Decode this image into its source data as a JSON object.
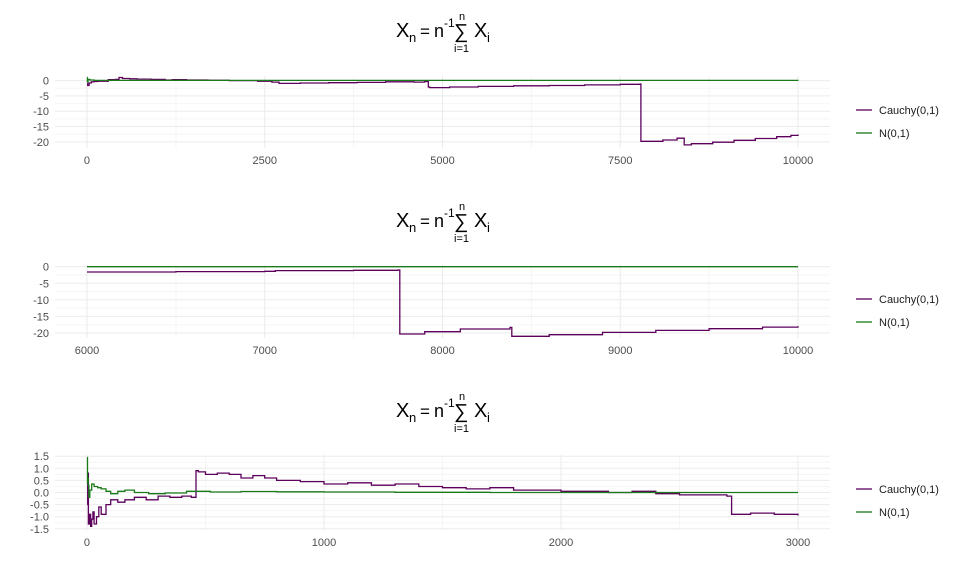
{
  "figure": {
    "title_parts": {
      "x": "X",
      "n_sub": "n",
      "eq": "=",
      "n": "n",
      "exp": "-1",
      "sum": "∑",
      "upper": "n",
      "lower": "i=1",
      "xi": "X",
      "i_sub": "i"
    }
  },
  "colors": {
    "cauchy": "#5c005c",
    "normal": "#1a7a1a",
    "grid_major": "#ebebeb",
    "grid_minor": "#f5f5f5"
  },
  "chart_data": [
    {
      "type": "line",
      "title": "Xn = n^-1 ∑(i=1..n) Xi",
      "xlim": [
        0,
        10000
      ],
      "ylim": [
        -22,
        1.5
      ],
      "x_ticks": [
        0,
        2500,
        5000,
        7500,
        10000
      ],
      "x_tick_labels": [
        "0",
        "2500",
        "5000",
        "7500",
        "10000"
      ],
      "y_ticks": [
        0,
        -5,
        -10,
        -15,
        -20
      ],
      "y_tick_labels": [
        "0",
        "-5",
        "-10",
        "-15",
        "-20"
      ],
      "legend_position": "right",
      "series": [
        {
          "name": "Cauchy(0,1)",
          "color_key": "cauchy",
          "x": [
            1,
            10,
            30,
            60,
            100,
            150,
            200,
            300,
            400,
            450,
            500,
            600,
            700,
            900,
            1100,
            1200,
            1400,
            1700,
            2000,
            2400,
            2600,
            2700,
            3000,
            3400,
            3800,
            4200,
            4600,
            4750,
            4800,
            4820,
            5100,
            5500,
            6000,
            6500,
            7000,
            7500,
            7780,
            7790,
            8100,
            8300,
            8400,
            8500,
            8800,
            9100,
            9400,
            9700,
            9900,
            10000
          ],
          "y": [
            -1,
            -1.6,
            -0.8,
            -0.4,
            -0.3,
            -0.2,
            -0.2,
            0.3,
            0.4,
            1.0,
            0.7,
            0.6,
            0.5,
            0.4,
            0.2,
            0.3,
            0.2,
            0.1,
            0.0,
            -0.2,
            -0.5,
            -0.9,
            -0.8,
            -0.7,
            -0.6,
            -0.4,
            -0.5,
            -0.3,
            -2.1,
            -2.3,
            -2.1,
            -1.9,
            -1.7,
            -1.6,
            -1.4,
            -1.2,
            -1.1,
            -19.8,
            -19.4,
            -18.8,
            -21.0,
            -20.6,
            -20.1,
            -19.5,
            -18.9,
            -18.3,
            -17.9,
            -17.6
          ]
        },
        {
          "name": "N(0,1)",
          "color_key": "normal",
          "x": [
            1,
            5,
            15,
            40,
            100,
            10000
          ],
          "y": [
            1.0,
            -0.5,
            0.4,
            0.2,
            0.05,
            0.0
          ]
        }
      ]
    },
    {
      "type": "line",
      "title": "Xn = n^-1 ∑(i=1..n) Xi",
      "xlim": [
        6000,
        10000
      ],
      "ylim": [
        -21.5,
        0.5
      ],
      "x_ticks": [
        6000,
        7000,
        8000,
        9000,
        10000
      ],
      "x_tick_labels": [
        "6000",
        "7000",
        "8000",
        "9000",
        "10000"
      ],
      "y_ticks": [
        0,
        -5,
        -10,
        -15,
        -20
      ],
      "y_tick_labels": [
        "0",
        "-5",
        "-10",
        "-15",
        "-20"
      ],
      "legend_position": "right",
      "series": [
        {
          "name": "Cauchy(0,1)",
          "color_key": "cauchy",
          "x": [
            6000,
            6500,
            7000,
            7060,
            7500,
            7750,
            7760,
            7900,
            8100,
            8380,
            8390,
            8600,
            8900,
            9200,
            9500,
            9800,
            10000
          ],
          "y": [
            -1.6,
            -1.5,
            -1.4,
            -1.2,
            -1.1,
            -1.0,
            -20.3,
            -19.6,
            -18.8,
            -18.3,
            -21.0,
            -20.5,
            -19.8,
            -19.2,
            -18.7,
            -18.2,
            -17.9
          ]
        },
        {
          "name": "N(0,1)",
          "color_key": "normal",
          "x": [
            6000,
            10000
          ],
          "y": [
            0.0,
            0.0
          ]
        }
      ]
    },
    {
      "type": "line",
      "title": "Xn = n^-1 ∑(i=1..n) Xi",
      "xlim": [
        0,
        3000
      ],
      "ylim": [
        -1.55,
        1.55
      ],
      "x_ticks": [
        0,
        1000,
        2000,
        3000
      ],
      "x_tick_labels": [
        "0",
        "1000",
        "2000",
        "3000"
      ],
      "y_ticks": [
        1.5,
        1.0,
        0.5,
        0.0,
        -0.5,
        -1.0,
        -1.5
      ],
      "y_tick_labels": [
        "1.5",
        "1.0",
        "0.5",
        "0.0",
        "-0.5",
        "-1.0",
        "-1.5"
      ],
      "legend_position": "right",
      "series": [
        {
          "name": "Cauchy(0,1)",
          "color_key": "cauchy",
          "x": [
            1,
            3,
            6,
            10,
            15,
            20,
            25,
            30,
            40,
            50,
            60,
            80,
            100,
            130,
            160,
            200,
            250,
            300,
            350,
            400,
            440,
            460,
            470,
            500,
            550,
            600,
            650,
            700,
            750,
            800,
            900,
            1000,
            1100,
            1200,
            1300,
            1400,
            1500,
            1600,
            1700,
            1800,
            1900,
            2000,
            2100,
            2200,
            2300,
            2400,
            2500,
            2600,
            2700,
            2720,
            2800,
            2900,
            3000
          ],
          "y": [
            -0.5,
            0.8,
            -1.3,
            -0.9,
            -1.4,
            -1.1,
            -0.8,
            -1.3,
            -1.0,
            -0.6,
            -0.9,
            -0.5,
            -0.3,
            -0.4,
            -0.3,
            -0.2,
            -0.3,
            -0.15,
            -0.2,
            -0.15,
            -0.2,
            0.9,
            0.85,
            0.75,
            0.8,
            0.75,
            0.6,
            0.7,
            0.6,
            0.5,
            0.45,
            0.35,
            0.4,
            0.3,
            0.35,
            0.25,
            0.2,
            0.15,
            0.2,
            0.1,
            0.1,
            0.05,
            0.05,
            0.0,
            0.05,
            -0.05,
            -0.1,
            -0.1,
            -0.15,
            -0.9,
            -0.85,
            -0.9,
            -0.95
          ]
        },
        {
          "name": "N(0,1)",
          "color_key": "normal",
          "x": [
            1,
            2,
            3,
            5,
            8,
            12,
            20,
            30,
            45,
            60,
            80,
            100,
            130,
            160,
            200,
            260,
            330,
            420,
            520,
            650,
            800,
            1000,
            1300,
            1700,
            2200,
            3000
          ],
          "y": [
            1.45,
            0.4,
            0.6,
            0.3,
            -0.2,
            0.1,
            0.35,
            0.25,
            0.2,
            0.15,
            0.05,
            -0.05,
            0.05,
            0.1,
            0.0,
            -0.05,
            -0.02,
            0.05,
            0.02,
            0.04,
            0.03,
            0.02,
            0.01,
            0.0,
            0.0,
            0.0
          ]
        }
      ]
    }
  ]
}
